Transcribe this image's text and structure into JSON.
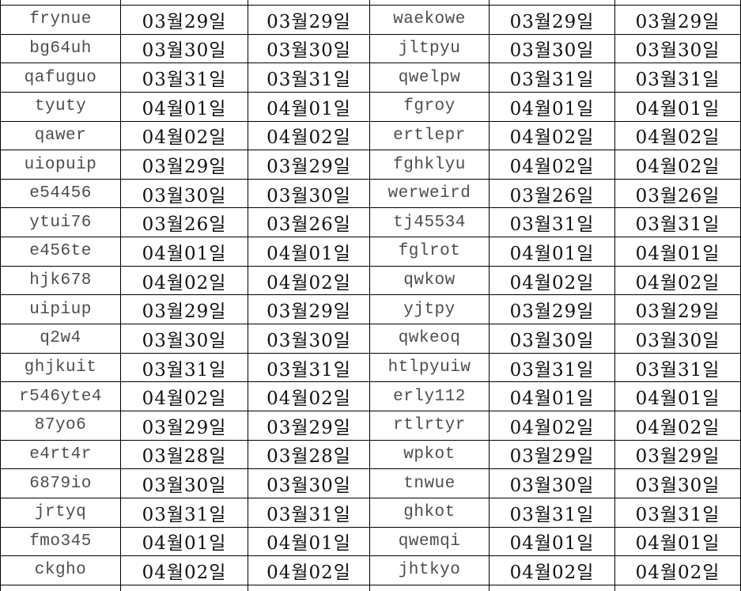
{
  "colors": {
    "background": "#ffffff",
    "border": "#000000",
    "name_text": "#4d4d4d",
    "date_text": "#111111"
  },
  "table": {
    "rows": [
      [
        "frynue",
        "03월29일",
        "03월29일",
        "waekowe",
        "03월29일",
        "03월29일"
      ],
      [
        "bg64uh",
        "03월30일",
        "03월30일",
        "jltpyu",
        "03월30일",
        "03월30일"
      ],
      [
        "qafuguo",
        "03월31일",
        "03월31일",
        "qwelpw",
        "03월31일",
        "03월31일"
      ],
      [
        "tyuty",
        "04월01일",
        "04월01일",
        "fgroy",
        "04월01일",
        "04월01일"
      ],
      [
        "qawer",
        "04월02일",
        "04월02일",
        "ertlepr",
        "04월02일",
        "04월02일"
      ],
      [
        "uiopuip",
        "03월29일",
        "03월29일",
        "fghklyu",
        "04월02일",
        "04월02일"
      ],
      [
        "e54456",
        "03월30일",
        "03월30일",
        "werweird",
        "03월26일",
        "03월26일"
      ],
      [
        "ytui76",
        "03월26일",
        "03월26일",
        "tj45534",
        "03월31일",
        "03월31일"
      ],
      [
        "e456te",
        "04월01일",
        "04월01일",
        "fglrot",
        "04월01일",
        "04월01일"
      ],
      [
        "hjk678",
        "04월02일",
        "04월02일",
        "qwkow",
        "04월02일",
        "04월02일"
      ],
      [
        "uipiup",
        "03월29일",
        "03월29일",
        "yjtpy",
        "03월29일",
        "03월29일"
      ],
      [
        "q2w4",
        "03월30일",
        "03월30일",
        "qwkeoq",
        "03월30일",
        "03월30일"
      ],
      [
        "ghjkuit",
        "03월31일",
        "03월31일",
        "htlpyuiw",
        "03월31일",
        "03월31일"
      ],
      [
        "r546yte4",
        "04월02일",
        "04월02일",
        "erly112",
        "04월01일",
        "04월01일"
      ],
      [
        "87yo6",
        "03월29일",
        "03월29일",
        "rtlrtyr",
        "04월02일",
        "04월02일"
      ],
      [
        "e4rt4r",
        "03월28일",
        "03월28일",
        "wpkot",
        "03월29일",
        "03월29일"
      ],
      [
        "6879io",
        "03월30일",
        "03월30일",
        "tnwue",
        "03월30일",
        "03월30일"
      ],
      [
        "jrtyq",
        "03월31일",
        "03월31일",
        "ghkot",
        "03월31일",
        "03월31일"
      ],
      [
        "fmo345",
        "04월01일",
        "04월01일",
        "qwemqi",
        "04월01일",
        "04월01일"
      ],
      [
        "ckgho",
        "04월02일",
        "04월02일",
        "jhtkyo",
        "04월02일",
        "04월02일"
      ]
    ]
  }
}
